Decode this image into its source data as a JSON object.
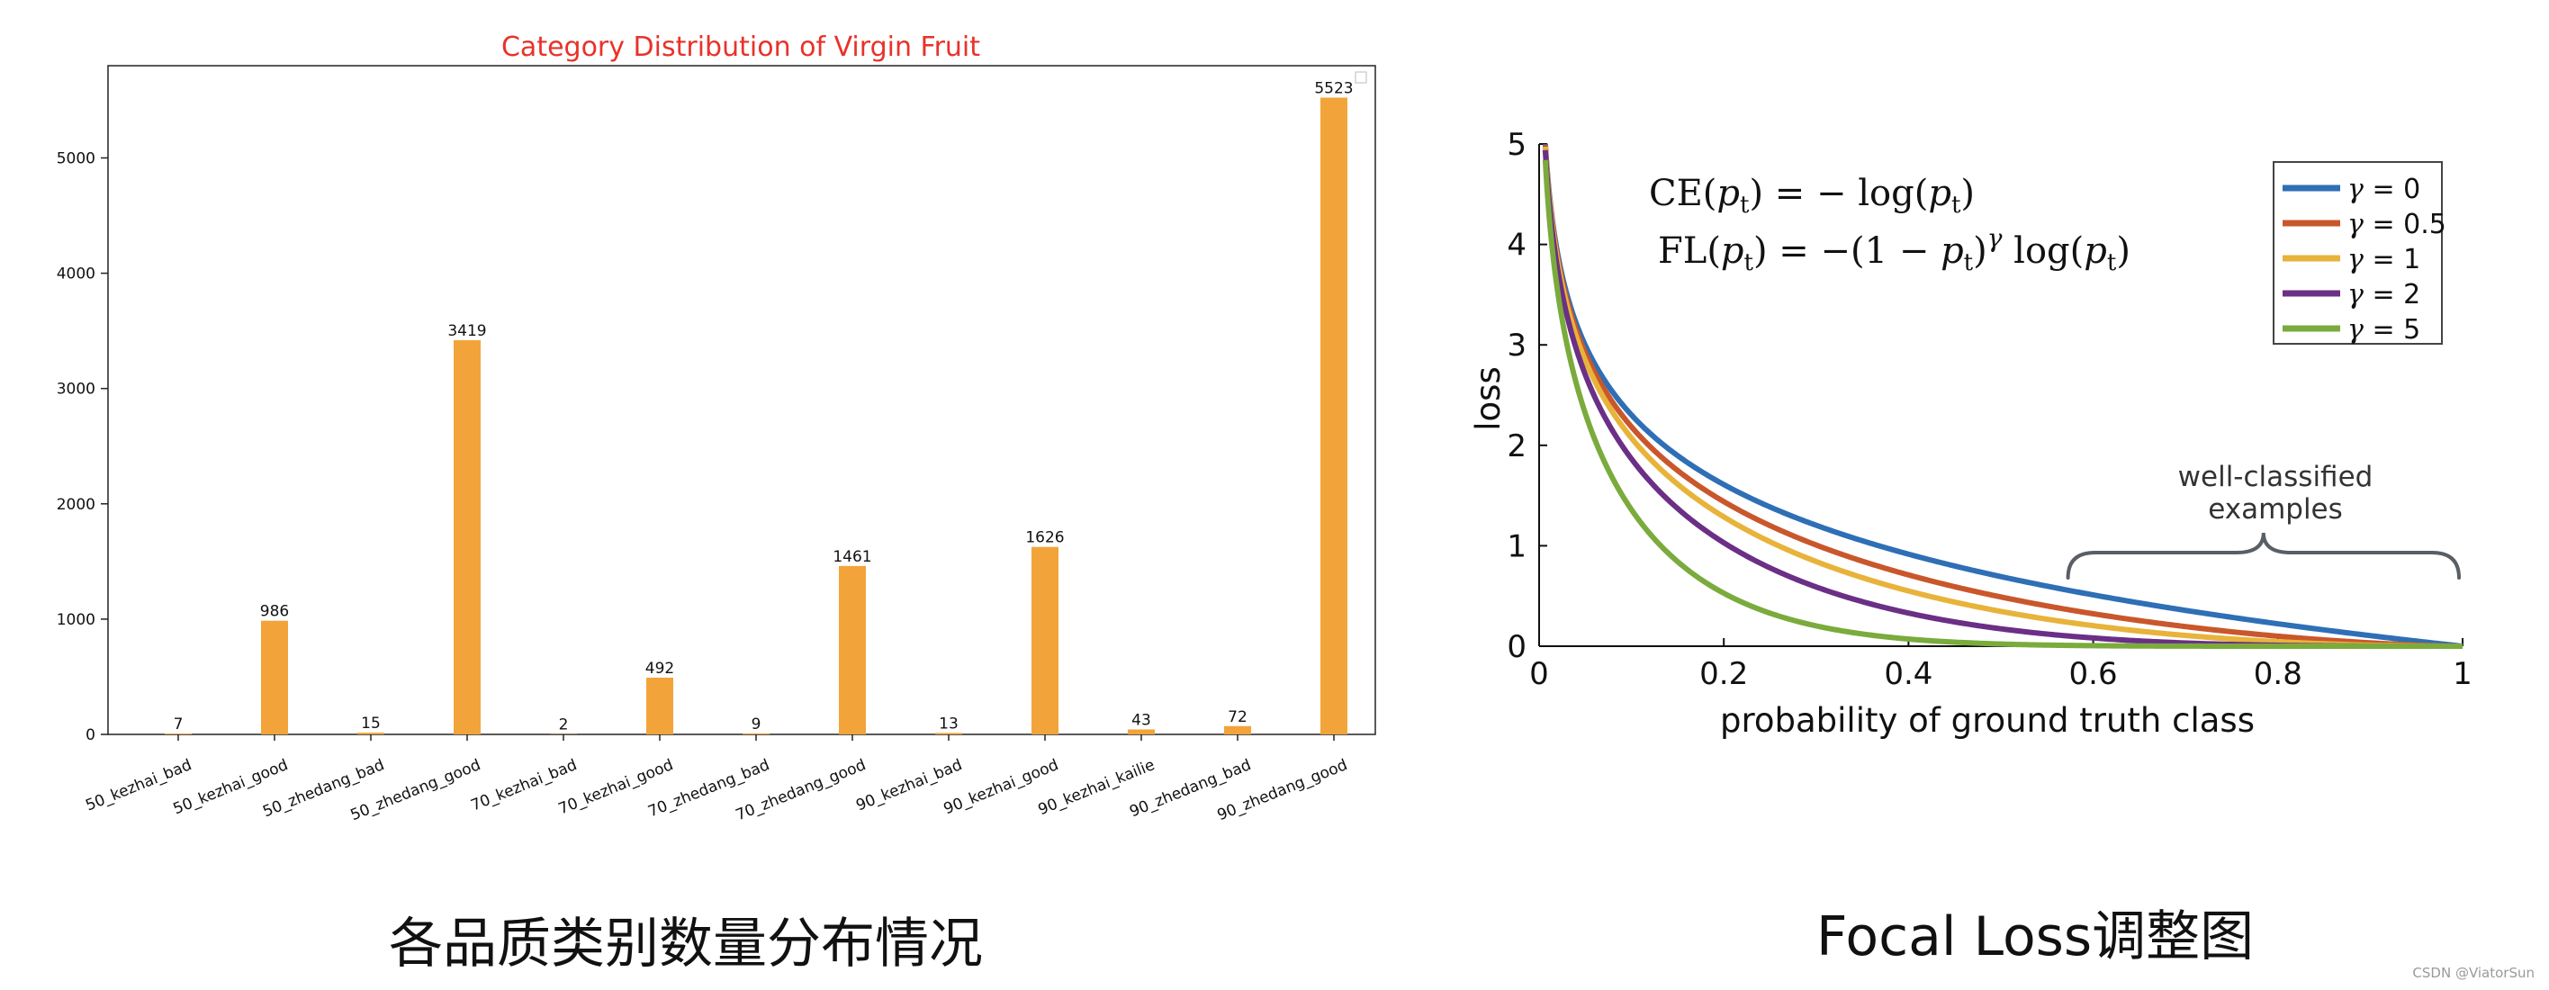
{
  "captions": {
    "left": "各品质类别数量分布情况",
    "right": "Focal Loss调整图"
  },
  "watermark": "CSDN @ViatorSun",
  "colors": {
    "bar": "#f2a43a",
    "left_title": "#e8322a",
    "gamma0": "#2e6fb6",
    "gamma05": "#c9572b",
    "gamma1": "#e8b33a",
    "gamma2": "#6b2f86",
    "gamma5": "#7aab3c",
    "brace": "#5a5f66"
  },
  "chart_data": [
    {
      "type": "bar",
      "title": "Category Distribution of Virgin Fruit",
      "categories": [
        "50_kezhai_bad",
        "50_kezhai_good",
        "50_zhedang_bad",
        "50_zhedang_good",
        "70_kezhai_bad",
        "70_kezhai_good",
        "70_zhedang_bad",
        "70_zhedang_good",
        "90_kezhai_bad",
        "90_kezhai_good",
        "90_kezhai_kailie",
        "90_zhedang_bad",
        "90_zhedang_good"
      ],
      "values": [
        7,
        986,
        15,
        3419,
        2,
        492,
        9,
        1461,
        13,
        1626,
        43,
        72,
        5523
      ],
      "data_labels": [
        "7",
        "986",
        "15",
        "3419",
        "2",
        "492",
        "9",
        "1461",
        "13",
        "1626",
        "43",
        "72",
        "5523"
      ],
      "ylim": [
        0,
        5800
      ],
      "yticks": [
        0,
        1000,
        2000,
        3000,
        4000,
        5000
      ],
      "ytick_labels": [
        "0",
        "1000",
        "2000",
        "3000",
        "4000",
        "5000"
      ],
      "xlabel": "",
      "ylabel": "",
      "legend": "top-right (empty)"
    },
    {
      "type": "line",
      "xlabel": "probability of ground truth class",
      "ylabel": "loss",
      "xlim": [
        0,
        1
      ],
      "ylim": [
        0,
        5
      ],
      "xticks": [
        0,
        0.2,
        0.4,
        0.6,
        0.8,
        1
      ],
      "xtick_labels": [
        "0",
        "0.2",
        "0.4",
        "0.6",
        "0.8",
        "1"
      ],
      "yticks": [
        0,
        1,
        2,
        3,
        4,
        5
      ],
      "ytick_labels": [
        "0",
        "1",
        "2",
        "3",
        "4",
        "5"
      ],
      "function": "loss = -(1 - p)^gamma * ln(p)",
      "series": [
        {
          "name": "γ = 0",
          "symbol": "γ",
          "rest": " = 0",
          "gamma": 0
        },
        {
          "name": "γ = 0.5",
          "symbol": "γ",
          "rest": " = 0.5",
          "gamma": 0.5
        },
        {
          "name": "γ = 1",
          "symbol": "γ",
          "rest": " = 1",
          "gamma": 1
        },
        {
          "name": "γ = 2",
          "symbol": "γ",
          "rest": " = 2",
          "gamma": 2
        },
        {
          "name": "γ = 5",
          "symbol": "γ",
          "rest": " = 5",
          "gamma": 5
        }
      ],
      "formulas": {
        "ce": {
          "a": "CE(",
          "p": "p",
          "t": "t",
          "b": ") = − log(",
          "c": ")"
        },
        "fl": {
          "a": "FL(",
          "b": ") = −(1 − ",
          "c": ")",
          "gamma": "γ",
          "d": " log(",
          "e": ")"
        }
      },
      "annotation": {
        "line1": "well-classified",
        "line2": "examples",
        "x_from": 0.6,
        "x_to": 1.0
      },
      "legend": "top-right"
    }
  ]
}
